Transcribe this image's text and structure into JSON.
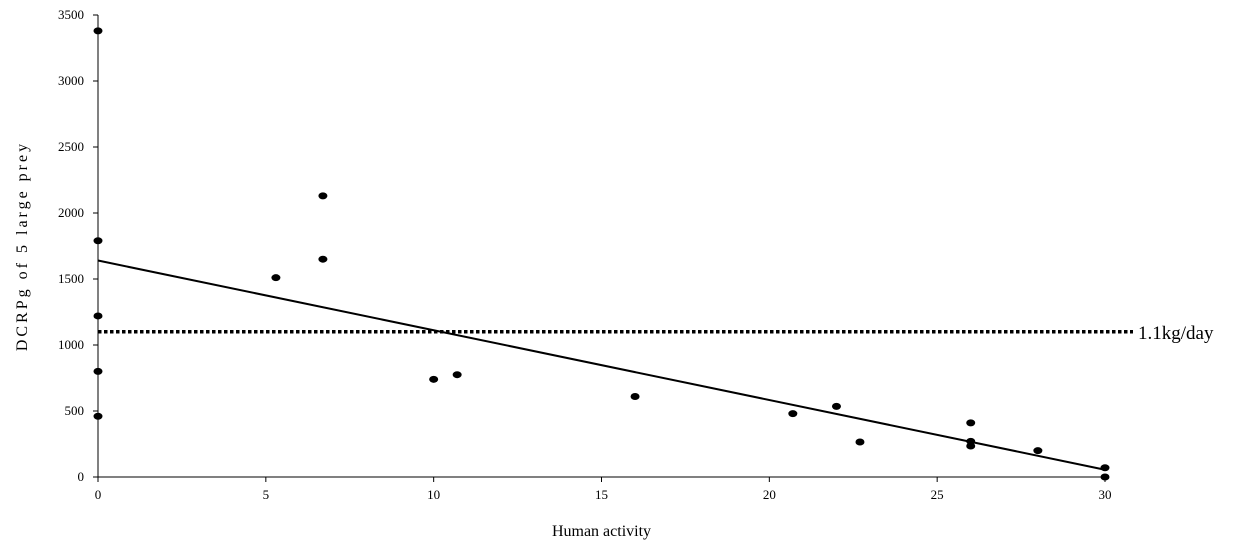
{
  "chart_data": {
    "type": "scatter",
    "xlabel": "Human activity",
    "ylabel": "DCRPg of 5 large prey",
    "xlim": [
      0,
      30
    ],
    "ylim": [
      0,
      3500
    ],
    "xticks": [
      0,
      5,
      10,
      15,
      20,
      25,
      30
    ],
    "yticks": [
      0,
      500,
      1000,
      1500,
      2000,
      2500,
      3000,
      3500
    ],
    "grid": false,
    "legend": "none",
    "points": [
      {
        "x": 0,
        "y": 3380
      },
      {
        "x": 0,
        "y": 1790
      },
      {
        "x": 0,
        "y": 1220
      },
      {
        "x": 0,
        "y": 800
      },
      {
        "x": 0,
        "y": 460
      },
      {
        "x": 5.3,
        "y": 1510
      },
      {
        "x": 6.7,
        "y": 2130
      },
      {
        "x": 6.7,
        "y": 1650
      },
      {
        "x": 10,
        "y": 740
      },
      {
        "x": 10.7,
        "y": 775
      },
      {
        "x": 16,
        "y": 610
      },
      {
        "x": 20.7,
        "y": 480
      },
      {
        "x": 22,
        "y": 535
      },
      {
        "x": 22.7,
        "y": 265
      },
      {
        "x": 26,
        "y": 410
      },
      {
        "x": 26,
        "y": 270
      },
      {
        "x": 26,
        "y": 235
      },
      {
        "x": 28,
        "y": 200
      },
      {
        "x": 30,
        "y": 70
      },
      {
        "x": 30,
        "y": 0
      }
    ],
    "trendline": {
      "x": [
        0,
        30
      ],
      "y": [
        1640,
        55
      ]
    },
    "reference_line": {
      "y": 1100,
      "label": "1.1kg/day",
      "style": "dotted"
    },
    "colors": {
      "points": "#000000",
      "lines": "#000000"
    }
  }
}
